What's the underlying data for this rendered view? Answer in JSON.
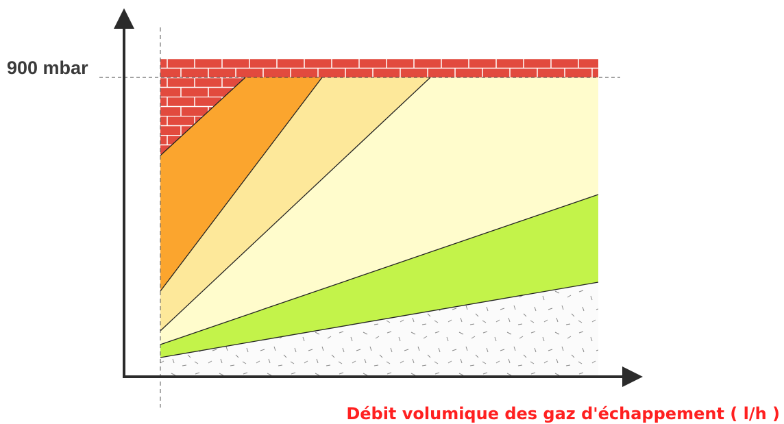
{
  "y_axis_label": "900 mbar",
  "x_axis_title": "Débit volumique des gaz d'échappement ( l/h )"
}
